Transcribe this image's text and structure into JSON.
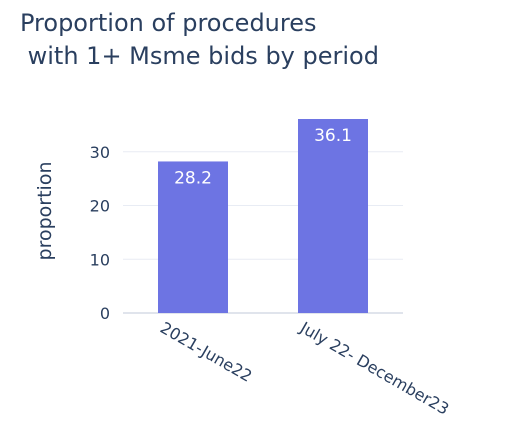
{
  "chart_data": {
    "type": "bar",
    "title_lines": [
      "Proportion of procedures",
      " with 1+ Msme bids by period"
    ],
    "categories": [
      "2021-June22",
      "July 22- December23"
    ],
    "values": [
      28.2,
      36.1
    ],
    "value_labels": [
      "28.2",
      "36.1"
    ],
    "xlabel": "",
    "ylabel": "proportion",
    "yticks": [
      0,
      10,
      20,
      30
    ],
    "ylim": [
      0,
      36.1
    ],
    "grid": true,
    "bar_color": "#6d74e3",
    "grid_color": "#e8ecf4",
    "text_color": "#2a3f5f"
  }
}
